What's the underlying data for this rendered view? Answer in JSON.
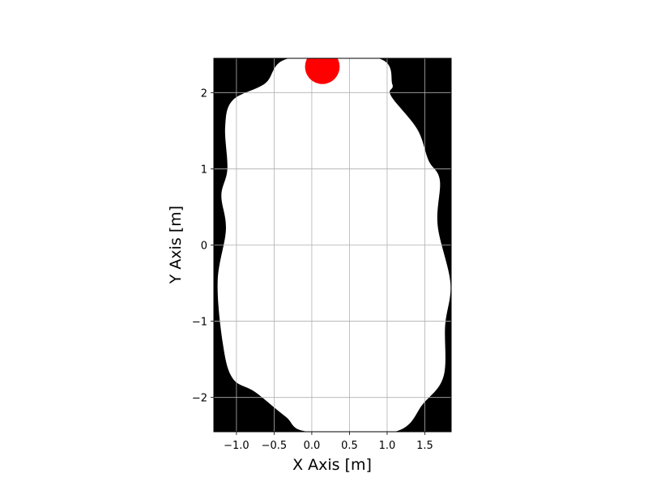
{
  "chart_data": {
    "type": "map",
    "title": "",
    "xlabel": "X Axis [m]",
    "ylabel": "Y Axis [m]",
    "xlim": [
      -1.3,
      1.85
    ],
    "ylim": [
      -2.45,
      2.45
    ],
    "xticks": [
      -1.0,
      -0.5,
      0.0,
      0.5,
      1.0,
      1.5
    ],
    "xtick_labels": [
      "−1.0",
      "−0.5",
      "0.0",
      "0.5",
      "1.0",
      "1.5"
    ],
    "yticks": [
      -2,
      -1,
      0,
      1,
      2
    ],
    "ytick_labels": [
      "−2",
      "−1",
      "0",
      "1",
      "2"
    ],
    "grid": true,
    "colors": {
      "obstacle": "#000000",
      "free_space": "#ffffff",
      "grid": "#b0b0b0",
      "robot": "#ff0000"
    },
    "free_space_boundary": [
      [
        0.88,
        2.45
      ],
      [
        1.07,
        2.11
      ],
      [
        1.05,
        1.96
      ],
      [
        1.4,
        1.52
      ],
      [
        1.55,
        1.11
      ],
      [
        1.7,
        0.85
      ],
      [
        1.67,
        0.26
      ],
      [
        1.84,
        -0.5
      ],
      [
        1.77,
        -1.05
      ],
      [
        1.75,
        -1.72
      ],
      [
        1.48,
        -2.08
      ],
      [
        1.1,
        -2.45
      ],
      [
        -0.05,
        -2.45
      ],
      [
        -0.35,
        -2.25
      ],
      [
        -0.75,
        -1.93
      ],
      [
        -1.05,
        -1.75
      ],
      [
        -1.18,
        -1.3
      ],
      [
        -1.25,
        -0.48
      ],
      [
        -1.14,
        0.2
      ],
      [
        -1.2,
        0.65
      ],
      [
        -1.12,
        1.0
      ],
      [
        -1.15,
        1.55
      ],
      [
        -1.05,
        1.9
      ],
      [
        -0.62,
        2.12
      ],
      [
        -0.3,
        2.45
      ]
    ],
    "robot": {
      "x": 0.14,
      "y": 2.34,
      "radius": 0.23
    }
  }
}
